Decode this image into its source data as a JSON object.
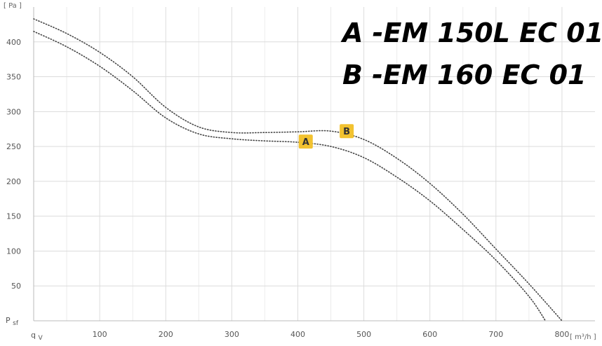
{
  "chart_data": {
    "type": "line",
    "xlim": [
      0,
      850
    ],
    "ylim": [
      0,
      450
    ],
    "x_ticks": [
      100,
      200,
      300,
      400,
      500,
      600,
      700,
      800
    ],
    "y_ticks": [
      50,
      100,
      150,
      200,
      250,
      300,
      350,
      400
    ],
    "x_minor_step": 50,
    "grid": true,
    "line_style": "dotted",
    "x_unit": "[ m³/h ]",
    "y_unit": "[ Pa ]",
    "x_symbol": "qV",
    "y_symbol": "Psf",
    "legend_lines": [
      "A -EM 150L EC 01",
      "B -EM 160 EC 01"
    ],
    "legend_position": "top-right",
    "series": [
      {
        "name": "A",
        "label_at": [
          412,
          257
        ],
        "x": [
          0,
          50,
          100,
          150,
          200,
          250,
          300,
          350,
          400,
          450,
          500,
          550,
          600,
          650,
          700,
          750,
          775
        ],
        "y": [
          415,
          393,
          365,
          330,
          291,
          268,
          261,
          258,
          256,
          250,
          234,
          206,
          172,
          131,
          87,
          35,
          0
        ]
      },
      {
        "name": "B",
        "label_at": [
          474,
          272
        ],
        "x": [
          0,
          50,
          100,
          150,
          200,
          250,
          300,
          350,
          400,
          450,
          500,
          550,
          600,
          650,
          700,
          750,
          800
        ],
        "y": [
          433,
          412,
          385,
          350,
          306,
          278,
          270,
          270,
          271,
          272,
          260,
          233,
          197,
          153,
          103,
          53,
          0
        ]
      }
    ],
    "badge_color": "#f2c230"
  }
}
